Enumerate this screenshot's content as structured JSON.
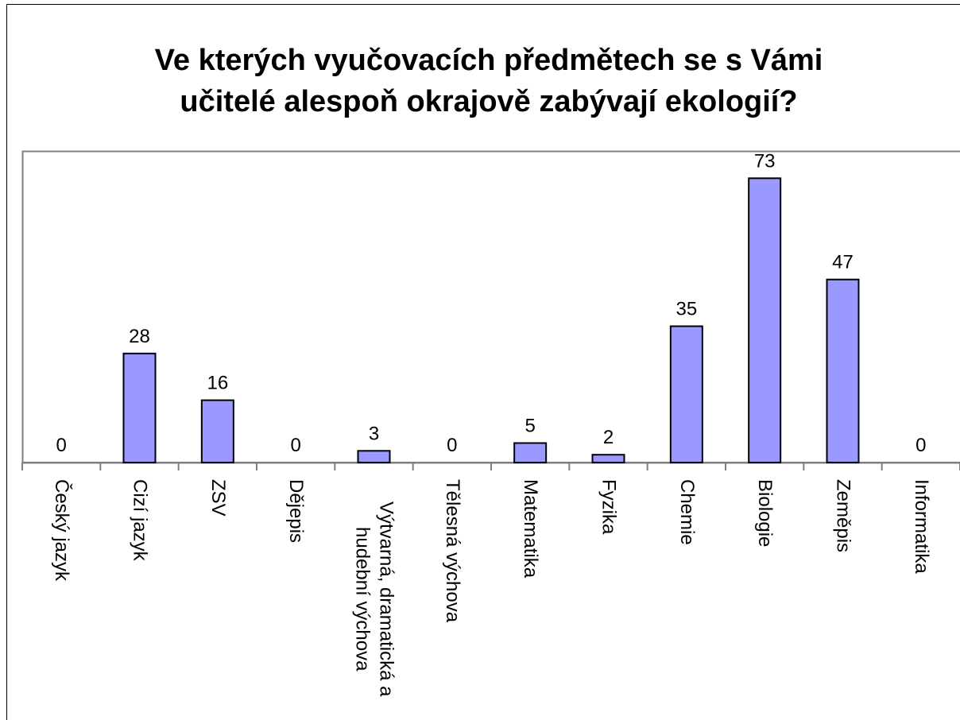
{
  "chart_data": {
    "type": "bar",
    "title": [
      "Ve kterých vyučovacích předmětech se s Vámi",
      "učitelé alespoň okrajově zabývají ekologií?"
    ],
    "categories": [
      "Český jazyk",
      "Cizí jazyk",
      "ZSV",
      "Dějepis",
      "Výtvarná, dramatická a hudební výchova",
      "Tělesná výchova",
      "Matematika",
      "Fyzika",
      "Chemie",
      "Biologie",
      "Zeměpis",
      "Informatika"
    ],
    "values": [
      0,
      28,
      16,
      0,
      3,
      0,
      5,
      2,
      35,
      73,
      47,
      0
    ],
    "color": "#9999ff",
    "ylim": [
      0,
      80
    ]
  }
}
